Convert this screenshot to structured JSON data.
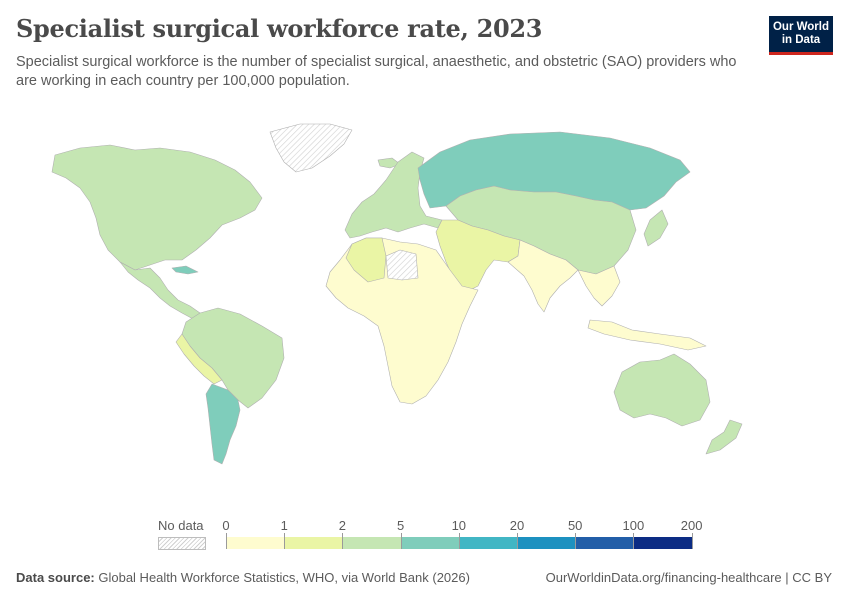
{
  "header": {
    "title": "Specialist surgical workforce rate, 2023",
    "subtitle": "Specialist surgical workforce is the number of specialist surgical, anaesthetic, and obstetric (SAO) providers who are working in each country per 100,000 population."
  },
  "logo": {
    "line1": "Our World",
    "line2": "in Data"
  },
  "legend": {
    "no_data_label": "No data",
    "ticks": [
      "0",
      "1",
      "2",
      "5",
      "10",
      "20",
      "50",
      "100",
      "200"
    ],
    "bins": [
      {
        "from": 0,
        "to": 1,
        "color": "#fefccf"
      },
      {
        "from": 1,
        "to": 2,
        "color": "#eaf5a5"
      },
      {
        "from": 2,
        "to": 5,
        "color": "#c5e6b3"
      },
      {
        "from": 5,
        "to": 10,
        "color": "#7fcdbb"
      },
      {
        "from": 10,
        "to": 20,
        "color": "#41b6c4"
      },
      {
        "from": 20,
        "to": 50,
        "color": "#1d91c0"
      },
      {
        "from": 50,
        "to": 100,
        "color": "#225ea8"
      },
      {
        "from": 100,
        "to": 200,
        "color": "#0c2c84"
      }
    ]
  },
  "regions": [
    {
      "name": "North America",
      "color": "#c5e6b3"
    },
    {
      "name": "Mexico & Central America",
      "color": "#c5e6b3"
    },
    {
      "name": "Cuba",
      "color": "#7fcdbb"
    },
    {
      "name": "South America",
      "color": "#c5e6b3"
    },
    {
      "name": "Argentina",
      "color": "#7fcdbb"
    },
    {
      "name": "Peru & Bolivia",
      "color": "#eaf5a5"
    },
    {
      "name": "Greenland",
      "color": "no-data"
    },
    {
      "name": "Iceland",
      "color": "#c5e6b3"
    },
    {
      "name": "Europe",
      "color": "#c5e6b3"
    },
    {
      "name": "Russia",
      "color": "#7fcdbb"
    },
    {
      "name": "China & Central Asia",
      "color": "#c5e6b3"
    },
    {
      "name": "Middle East",
      "color": "#eaf5a5"
    },
    {
      "name": "South Asia",
      "color": "#fefccf"
    },
    {
      "name": "Africa",
      "color": "#fefccf"
    },
    {
      "name": "Algeria",
      "color": "#eaf5a5"
    },
    {
      "name": "Libya",
      "color": "no-data"
    },
    {
      "name": "Southeast Asia",
      "color": "#fefccf"
    },
    {
      "name": "Indonesia",
      "color": "#fefccf"
    },
    {
      "name": "Australia",
      "color": "#c5e6b3"
    },
    {
      "name": "New Zealand",
      "color": "#c5e6b3"
    },
    {
      "name": "Japan",
      "color": "#c5e6b3"
    }
  ],
  "footer": {
    "source_label": "Data source:",
    "source_text": " Global Health Workforce Statistics, WHO, via World Bank (2026)",
    "url": "OurWorldinData.org/financing-healthcare | CC BY"
  }
}
